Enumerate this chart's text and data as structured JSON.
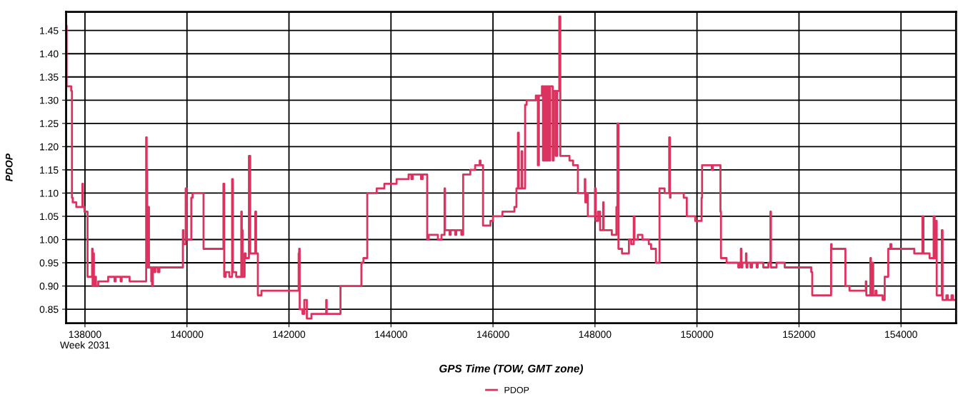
{
  "chart_data": {
    "type": "step",
    "xlabel": "GPS Time (TOW, GMT zone)",
    "ylabel": "PDOP",
    "xlim": [
      137630,
      155080
    ],
    "ylim": [
      0.82,
      1.49
    ],
    "xticks": [
      {
        "value": 138000,
        "label": "138000\nWeek 2031"
      },
      140000,
      142000,
      144000,
      146000,
      148000,
      150000,
      152000,
      154000
    ],
    "yticks": [
      {
        "value": 0.85,
        "label": "0.85"
      },
      {
        "value": 0.9,
        "label": "0.90"
      },
      {
        "value": 0.95,
        "label": "0.95"
      },
      {
        "value": 1.0,
        "label": "1.00"
      },
      {
        "value": 1.05,
        "label": "1.05"
      },
      {
        "value": 1.1,
        "label": "1.10"
      },
      {
        "value": 1.15,
        "label": "1.15"
      },
      {
        "value": 1.2,
        "label": "1.20"
      },
      {
        "value": 1.25,
        "label": "1.25"
      },
      {
        "value": 1.3,
        "label": "1.30"
      },
      {
        "value": 1.35,
        "label": "1.35"
      },
      {
        "value": 1.4,
        "label": "1.40"
      },
      {
        "value": 1.45,
        "label": "1.45"
      }
    ],
    "grid": true,
    "legend": "bottom",
    "marker": "none",
    "line_style": "solid",
    "series": [
      {
        "name": "PDOP",
        "color": "#dc325f",
        "x": [
          137630,
          137640,
          137730,
          137745,
          137760,
          137830,
          137950,
          137960,
          137990,
          138050,
          138140,
          138150,
          138165,
          138175,
          138200,
          138215,
          138260,
          138455,
          138580,
          138600,
          138700,
          138720,
          138875,
          139200,
          139210,
          139220,
          139240,
          139255,
          139300,
          139315,
          139330,
          139360,
          139380,
          139430,
          139460,
          139920,
          139930,
          139975,
          139990,
          140085,
          140110,
          140325,
          140715,
          140730,
          140760,
          140830,
          140885,
          140900,
          140965,
          141065,
          141075,
          141090,
          141130,
          141150,
          141215,
          141240,
          141340,
          141355,
          141390,
          141460,
          142190,
          142200,
          142210,
          142265,
          142300,
          142350,
          142440,
          142730,
          142740,
          143010,
          143420,
          143460,
          143535,
          143720,
          143870,
          144110,
          144345,
          144400,
          144425,
          144590,
          144620,
          144710,
          144740,
          144920,
          144990,
          145050,
          145060,
          145150,
          145170,
          145260,
          145280,
          145380,
          145415,
          145555,
          145650,
          145740,
          145755,
          145805,
          145950,
          146000,
          146185,
          146420,
          146460,
          146490,
          146505,
          146560,
          146575,
          146630,
          146660,
          146840,
          146880,
          146900,
          146960,
          146980,
          147000,
          147020,
          147040,
          147060,
          147080,
          147100,
          147120,
          147170,
          147190,
          147230,
          147260,
          147300,
          147320,
          147500,
          147570,
          147665,
          147800,
          147810,
          147840,
          147860,
          148000,
          148015,
          148060,
          148100,
          148160,
          148170,
          148330,
          148420,
          148440,
          148460,
          148530,
          148665,
          148710,
          148760,
          148775,
          148840,
          148930,
          149055,
          149100,
          149195,
          149265,
          149365,
          149455,
          149470,
          149480,
          149740,
          149800,
          149965,
          150090,
          150100,
          150290,
          150310,
          150460,
          150470,
          150580,
          150810,
          150840,
          150860,
          150870,
          150890,
          150960,
          150970,
          150990,
          151050,
          151080,
          151170,
          151190,
          151300,
          151400,
          151440,
          151450,
          151560,
          151720,
          152240,
          152260,
          152630,
          152640,
          152910,
          152990,
          153310,
          153320,
          153400,
          153410,
          153440,
          153455,
          153500,
          153520,
          153640,
          153680,
          153750,
          153790,
          153810,
          154260,
          154420,
          154440,
          154560,
          154640,
          154660,
          154690,
          154700,
          154800,
          154815,
          154890,
          154920,
          154990,
          155020,
          155080
        ],
        "values": [
          1.46,
          1.33,
          1.32,
          1.09,
          1.08,
          1.07,
          1.12,
          1.07,
          1.06,
          0.92,
          0.98,
          0.9,
          0.97,
          0.9,
          0.92,
          0.9,
          0.91,
          0.92,
          0.91,
          0.92,
          0.91,
          0.92,
          0.91,
          1.22,
          1.15,
          0.94,
          1.07,
          0.94,
          0.91,
          0.9,
          0.94,
          0.93,
          0.94,
          0.93,
          0.94,
          1.02,
          0.99,
          1.11,
          1.0,
          1.09,
          1.1,
          0.98,
          1.12,
          0.92,
          0.93,
          0.92,
          1.13,
          0.93,
          0.92,
          1.06,
          1.02,
          0.92,
          0.97,
          0.96,
          1.18,
          0.97,
          1.06,
          0.97,
          0.88,
          0.89,
          0.97,
          0.98,
          0.85,
          0.84,
          0.87,
          0.83,
          0.84,
          0.87,
          0.84,
          0.9,
          0.95,
          0.96,
          1.1,
          1.11,
          1.12,
          1.13,
          1.14,
          1.13,
          1.14,
          1.13,
          1.14,
          1.0,
          1.01,
          1.0,
          1.01,
          1.11,
          1.02,
          1.01,
          1.02,
          1.01,
          1.02,
          1.01,
          1.14,
          1.15,
          1.16,
          1.17,
          1.16,
          1.03,
          1.04,
          1.05,
          1.06,
          1.07,
          1.11,
          1.23,
          1.11,
          1.19,
          1.11,
          1.29,
          1.3,
          1.31,
          1.16,
          1.31,
          1.33,
          1.17,
          1.33,
          1.17,
          1.33,
          1.17,
          1.33,
          1.17,
          1.33,
          1.17,
          1.32,
          1.18,
          1.32,
          1.48,
          1.18,
          1.17,
          1.16,
          1.1,
          1.13,
          1.08,
          1.1,
          1.05,
          1.11,
          1.04,
          1.06,
          1.02,
          1.08,
          1.02,
          1.01,
          1.07,
          1.25,
          0.98,
          0.97,
          1.0,
          0.99,
          1.05,
          1.0,
          1.01,
          1.0,
          0.99,
          0.98,
          0.95,
          1.11,
          1.1,
          1.22,
          1.09,
          1.1,
          1.09,
          1.05,
          1.04,
          1.09,
          1.16,
          1.15,
          1.16,
          1.06,
          0.96,
          0.95,
          0.94,
          0.95,
          0.98,
          0.94,
          0.95,
          0.97,
          0.94,
          0.95,
          0.94,
          0.95,
          0.94,
          0.95,
          0.94,
          0.95,
          1.06,
          0.94,
          0.95,
          0.94,
          0.93,
          0.88,
          0.99,
          0.98,
          0.9,
          0.89,
          0.91,
          0.88,
          0.96,
          0.88,
          0.95,
          0.88,
          0.89,
          0.88,
          0.87,
          0.92,
          0.98,
          0.99,
          0.98,
          0.97,
          1.05,
          0.97,
          0.96,
          1.05,
          0.96,
          1.04,
          0.88,
          1.02,
          0.87,
          0.88,
          0.87,
          0.88,
          0.87,
          0.87
        ]
      }
    ]
  }
}
